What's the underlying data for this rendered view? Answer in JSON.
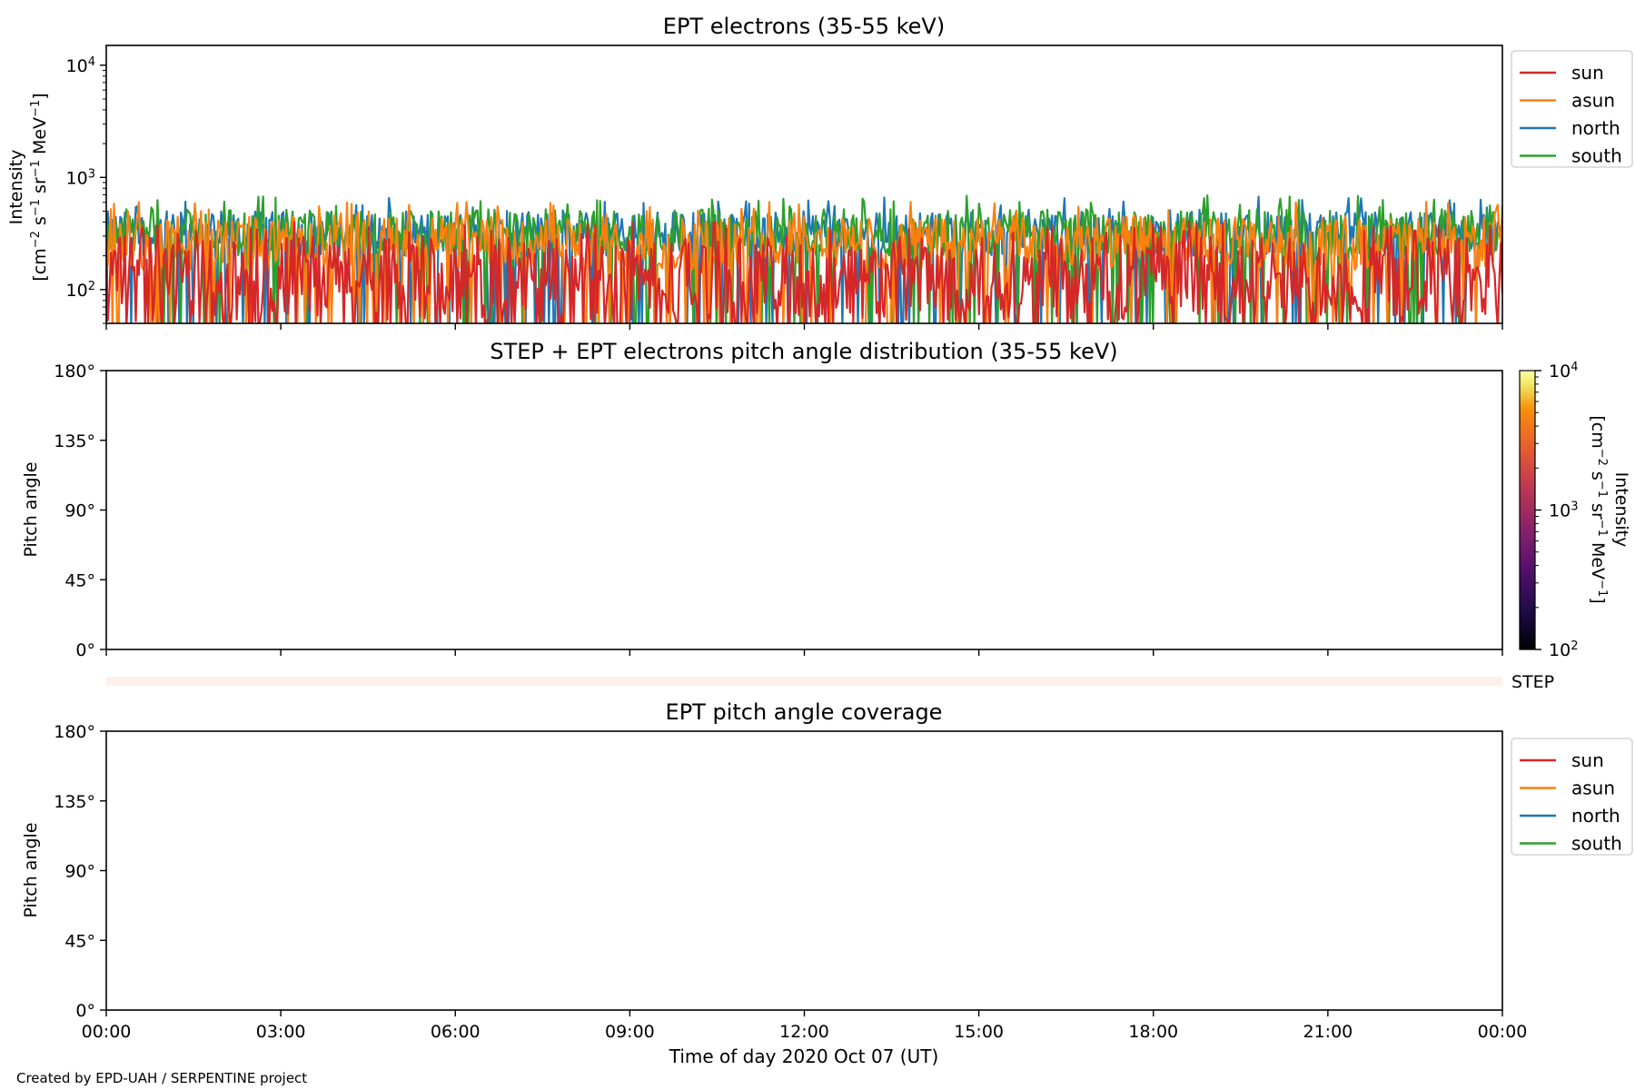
{
  "chart_data": [
    {
      "type": "line",
      "title": "EPT electrons (35-55 keV)",
      "ylabel": "Intensity",
      "yunit": "[cm$^{-2}$ s$^{-1}$ sr$^{-1}$ MeV$^{-1}$]",
      "yscale": "log",
      "ylim": [
        50,
        15000
      ],
      "yticks": [
        100,
        1000,
        10000
      ],
      "ytick_labels": [
        {
          "base": "10",
          "exp": "2"
        },
        {
          "base": "10",
          "exp": "3"
        },
        {
          "base": "10",
          "exp": "4"
        }
      ],
      "xlim": [
        "2020-10-07 00:00",
        "2020-10-08 00:00"
      ],
      "grid": false,
      "legend_position": "outside-right",
      "series": [
        {
          "name": "sun",
          "color": "#d62728",
          "typical_range": [
            50,
            300
          ]
        },
        {
          "name": "asun",
          "color": "#ff7f0e",
          "typical_range": [
            150,
            450
          ]
        },
        {
          "name": "north",
          "color": "#1f77b4",
          "typical_range": [
            200,
            500
          ]
        },
        {
          "name": "south",
          "color": "#2ca02c",
          "typical_range": [
            200,
            520
          ]
        }
      ],
      "note_values": "High-cadence noisy time series; all channels fluctuate between roughly 50 and 600 throughout the day."
    },
    {
      "type": "heatmap",
      "title": "STEP + EPT electrons pitch angle distribution (35-55 keV)",
      "ylabel": "Pitch angle",
      "yticks": [
        "0°",
        "45°",
        "90°",
        "135°",
        "180°"
      ],
      "ylim": [
        0,
        180
      ],
      "xlim": [
        "2020-10-07 00:00",
        "2020-10-08 00:00"
      ],
      "colorbar": {
        "label": "Intensity",
        "unit": "[cm$^{-2}$ s$^{-1}$ sr$^{-1}$ MeV$^{-1}$]",
        "scale": "log",
        "range": [
          100,
          10000
        ],
        "ticks": [
          {
            "base": "10",
            "exp": "2"
          },
          {
            "base": "10",
            "exp": "3"
          },
          {
            "base": "10",
            "exp": "4"
          }
        ],
        "colormap": "inferno"
      },
      "values": [],
      "step_strip_label": "STEP"
    },
    {
      "type": "line",
      "title": "EPT pitch angle coverage",
      "ylabel": "Pitch angle",
      "yticks": [
        "0°",
        "45°",
        "90°",
        "135°",
        "180°"
      ],
      "ylim": [
        0,
        180
      ],
      "xlabel": "Time of day 2020 Oct 07 (UT)",
      "xticks": [
        "00:00",
        "03:00",
        "06:00",
        "09:00",
        "12:00",
        "15:00",
        "18:00",
        "21:00",
        "00:00"
      ],
      "legend_position": "outside-right",
      "series": [
        {
          "name": "sun",
          "color": "#d62728",
          "values": []
        },
        {
          "name": "asun",
          "color": "#ff7f0e",
          "values": []
        },
        {
          "name": "north",
          "color": "#1f77b4",
          "values": []
        },
        {
          "name": "south",
          "color": "#2ca02c",
          "values": []
        }
      ]
    }
  ],
  "footer": {
    "credit": "Created by EPD-UAH / SERPENTINE project"
  }
}
